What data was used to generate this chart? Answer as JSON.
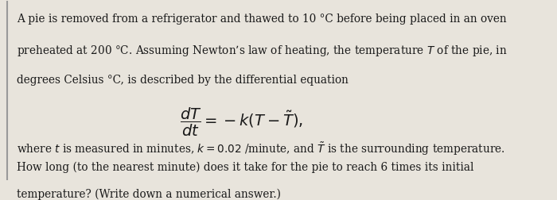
{
  "bg_color": "#e8e4dc",
  "text_color": "#1a1a1a",
  "border_color": "#999999",
  "line1": "A pie is removed from a refrigerator and thawed to 10 °C before being placed in an oven",
  "line2": "preheated at 200 °C. Assuming Newton’s law of heating, the temperature $T$ of the pie, in",
  "line3": "degrees Celsius °C, is described by the differential equation",
  "line5_plain": "where $t$ is measured in minutes, $k = 0.02$ /minute, and $\\tilde{T}$ is the surrounding temperature.",
  "line6": "How long (to the nearest minute) does it take for the pie to reach 6 times its initial",
  "line7": "temperature? (Write down a numerical answer.)",
  "equation_fs": 14,
  "body_fs": 9.8,
  "figsize": [
    7.0,
    2.52
  ],
  "dpi": 100
}
